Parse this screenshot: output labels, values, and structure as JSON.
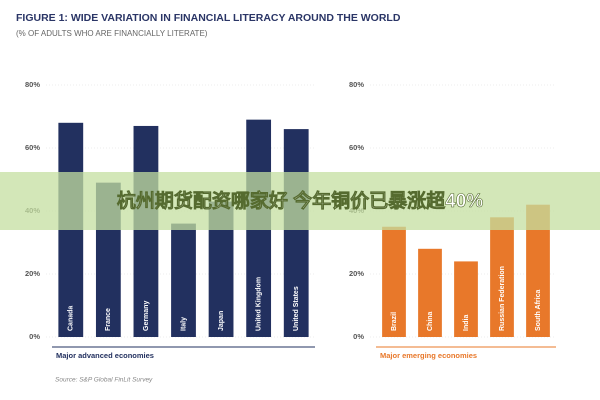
{
  "header": {
    "title": "FIGURE 1: WIDE VARIATION IN FINANCIAL LITERACY AROUND THE WORLD",
    "subtitle": "(% OF ADULTS WHO ARE FINANCIALLY LITERATE)"
  },
  "chart_data": [
    {
      "type": "bar",
      "xlabel": "Major advanced economies",
      "categories": [
        "Canada",
        "France",
        "Germany",
        "Italy",
        "Japan",
        "United Kingdom",
        "United States"
      ],
      "values": [
        68,
        49,
        67,
        36,
        43,
        69,
        66
      ],
      "color": "#22305f",
      "ylim": [
        0,
        80
      ],
      "yticks": [
        {
          "value": 0,
          "label": "0%"
        },
        {
          "value": 20,
          "label": "20%"
        },
        {
          "value": 40,
          "label": "40%"
        },
        {
          "value": 60,
          "label": "60%"
        },
        {
          "value": 80,
          "label": "80%"
        }
      ],
      "grid": true
    },
    {
      "type": "bar",
      "xlabel": "Major emerging economies",
      "categories": [
        "Brazil",
        "China",
        "India",
        "Russian Federation",
        "South Africa"
      ],
      "values": [
        35,
        28,
        24,
        38,
        42
      ],
      "color": "#e8782a",
      "ylim": [
        0,
        80
      ],
      "yticks": [
        {
          "value": 0,
          "label": "0%"
        },
        {
          "value": 20,
          "label": "20%"
        },
        {
          "value": 40,
          "label": "40%"
        },
        {
          "value": 60,
          "label": "60%"
        },
        {
          "value": 80,
          "label": "80%"
        }
      ],
      "grid": true
    }
  ],
  "source": "Source: S&P Global FinLit Survey",
  "banner": "杭州期货配资哪家好 今年铜价已暴涨超40%"
}
